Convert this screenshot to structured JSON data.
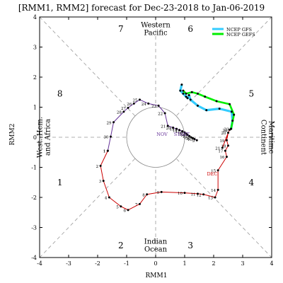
{
  "chart_data": {
    "type": "line",
    "title": "[RMM1, RMM2] forecast for Dec-23-2018 to Jan-06-2019",
    "xlabel": "RMM1",
    "ylabel": "RMM2",
    "xlim": [
      -4,
      4
    ],
    "ylim": [
      -4,
      4
    ],
    "x_ticks": [
      -4,
      -3,
      -2,
      -1,
      0,
      1,
      2,
      3,
      4
    ],
    "y_ticks": [
      -4,
      -3,
      -2,
      -1,
      0,
      1,
      2,
      3,
      4
    ],
    "grid": false,
    "legend": {
      "placement": "top-right",
      "entries": [
        {
          "name": "NCEP GFS",
          "color": "#33ccff"
        },
        {
          "name": "NCEP GEFS",
          "color": "#00ee00"
        }
      ]
    },
    "phase_numbers": [
      {
        "label": "1",
        "x": -3.3,
        "y": -1.5
      },
      {
        "label": "2",
        "x": -1.2,
        "y": -3.6
      },
      {
        "label": "3",
        "x": 1.2,
        "y": -3.6
      },
      {
        "label": "4",
        "x": 3.3,
        "y": -1.5
      },
      {
        "label": "5",
        "x": 3.3,
        "y": 1.45
      },
      {
        "label": "6",
        "x": 1.2,
        "y": 3.6
      },
      {
        "label": "7",
        "x": -1.2,
        "y": 3.6
      },
      {
        "label": "8",
        "x": -3.3,
        "y": 1.45
      }
    ],
    "regions": [
      {
        "name": "western-pacific",
        "lines": [
          "Western",
          "Pacific"
        ],
        "x": 0,
        "y": 3.6
      },
      {
        "name": "indian-ocean",
        "lines": [
          "Indian",
          "Ocean"
        ],
        "x": 0,
        "y": -3.6
      },
      {
        "name": "maritime-continent",
        "lines": [
          "Maritime",
          "Continent"
        ],
        "x": 3.85,
        "y": 0,
        "rotate": 90
      },
      {
        "name": "west-hem-africa",
        "lines": [
          "West. Hem.",
          "and Africa"
        ],
        "x": -3.85,
        "y": 0,
        "rotate": -90
      }
    ],
    "month_labels": [
      {
        "text": "DEC",
        "x": 1.95,
        "y": -1.2,
        "color": "#cc0000"
      },
      {
        "text": "NOV",
        "x": 0.22,
        "y": 0.12,
        "color": "#663399"
      },
      {
        "text": "START",
        "x": 0.9,
        "y": 0.12,
        "color": "#663399"
      }
    ],
    "series": [
      {
        "name": "Observed (Nov)",
        "color": "#663399",
        "points": [
          {
            "x": -1.65,
            "y": -0.45,
            "label": "1"
          },
          {
            "x": -1.55,
            "y": 0.02,
            "label": "30"
          },
          {
            "x": -1.45,
            "y": 0.5,
            "label": "29"
          },
          {
            "x": -1.1,
            "y": 0.85,
            "label": "28"
          },
          {
            "x": -0.95,
            "y": 0.98,
            "label": "27"
          },
          {
            "x": -0.75,
            "y": 1.12,
            "label": "26"
          },
          {
            "x": -0.55,
            "y": 1.25,
            "label": "25"
          },
          {
            "x": -0.25,
            "y": 1.12,
            "label": "24"
          },
          {
            "x": 0.1,
            "y": 1.05,
            "label": "23"
          },
          {
            "x": 0.32,
            "y": 0.8,
            "label": "22"
          },
          {
            "x": 0.42,
            "y": 0.38,
            "label": "21"
          },
          {
            "x": 0.6,
            "y": 0.32,
            "label": "20"
          },
          {
            "x": 0.72,
            "y": 0.28,
            "label": "19"
          },
          {
            "x": 0.82,
            "y": 0.24,
            "label": "18"
          },
          {
            "x": 0.92,
            "y": 0.2,
            "label": "17"
          },
          {
            "x": 1.0,
            "y": 0.16,
            "label": "16"
          },
          {
            "x": 1.05,
            "y": 0.12,
            "label": "15"
          },
          {
            "x": 1.1,
            "y": 0.08,
            "label": "14"
          },
          {
            "x": 1.16,
            "y": 0.04,
            "label": "13"
          },
          {
            "x": 1.22,
            "y": 0.0,
            "label": "12"
          },
          {
            "x": 1.28,
            "y": -0.03,
            "label": "11"
          },
          {
            "x": 1.34,
            "y": -0.06,
            "label": "10"
          },
          {
            "x": 1.42,
            "y": -0.1,
            "label": "9"
          }
        ]
      },
      {
        "name": "Observed (Dec)",
        "color": "#cc0000",
        "points": [
          {
            "x": -1.65,
            "y": -0.45,
            "label": "1"
          },
          {
            "x": -1.9,
            "y": -0.95,
            "label": "2"
          },
          {
            "x": -1.8,
            "y": -1.45,
            "label": "3"
          },
          {
            "x": -1.6,
            "y": -2.0,
            "label": "4"
          },
          {
            "x": -1.2,
            "y": -2.3,
            "label": "5"
          },
          {
            "x": -0.95,
            "y": -2.42,
            "label": "6"
          },
          {
            "x": -0.55,
            "y": -2.22,
            "label": "7"
          },
          {
            "x": -0.3,
            "y": -1.9,
            "label": "8"
          },
          {
            "x": 0.2,
            "y": -1.82,
            "label": "9"
          },
          {
            "x": 1.0,
            "y": -1.85,
            "label": "10"
          },
          {
            "x": 1.45,
            "y": -1.88,
            "label": "11"
          },
          {
            "x": 1.65,
            "y": -1.9,
            "label": "12"
          },
          {
            "x": 2.05,
            "y": -2.0,
            "label": "13"
          },
          {
            "x": 2.15,
            "y": -1.75,
            "label": "14"
          },
          {
            "x": 2.15,
            "y": -1.1,
            "label": "15"
          },
          {
            "x": 2.45,
            "y": -0.65,
            "label": "16"
          },
          {
            "x": 2.4,
            "y": -0.45,
            "label": "17"
          },
          {
            "x": 2.5,
            "y": -0.28,
            "label": "18"
          },
          {
            "x": 2.45,
            "y": -0.1,
            "label": "19"
          },
          {
            "x": 2.5,
            "y": 0.15,
            "label": "20"
          },
          {
            "x": 2.3,
            "y": -0.35,
            "label": "21"
          },
          {
            "x": 2.55,
            "y": 0.25,
            "label": "22"
          },
          {
            "x": 2.6,
            "y": 0.28,
            "label": "23"
          }
        ]
      },
      {
        "name": "NCEP GFS",
        "color": "#33ccff",
        "points": [
          {
            "x": 2.6,
            "y": 0.28
          },
          {
            "x": 2.65,
            "y": 0.55
          },
          {
            "x": 2.62,
            "y": 0.85
          },
          {
            "x": 2.2,
            "y": 0.95
          },
          {
            "x": 1.75,
            "y": 0.9
          },
          {
            "x": 1.45,
            "y": 1.05
          },
          {
            "x": 1.2,
            "y": 1.25
          },
          {
            "x": 1.15,
            "y": 1.4
          },
          {
            "x": 1.1,
            "y": 1.3
          },
          {
            "x": 1.05,
            "y": 1.35
          },
          {
            "x": 0.95,
            "y": 1.45
          },
          {
            "x": 0.85,
            "y": 1.55
          },
          {
            "x": 0.9,
            "y": 1.75
          }
        ]
      },
      {
        "name": "NCEP GEFS",
        "color": "#00ee00",
        "points": [
          {
            "x": 2.6,
            "y": 0.28
          },
          {
            "x": 2.7,
            "y": 0.75
          },
          {
            "x": 2.55,
            "y": 1.1
          },
          {
            "x": 2.1,
            "y": 1.2
          },
          {
            "x": 1.7,
            "y": 1.35
          },
          {
            "x": 1.45,
            "y": 1.45
          },
          {
            "x": 1.25,
            "y": 1.5
          },
          {
            "x": 1.05,
            "y": 1.45
          },
          {
            "x": 0.95,
            "y": 1.55
          }
        ]
      }
    ]
  }
}
